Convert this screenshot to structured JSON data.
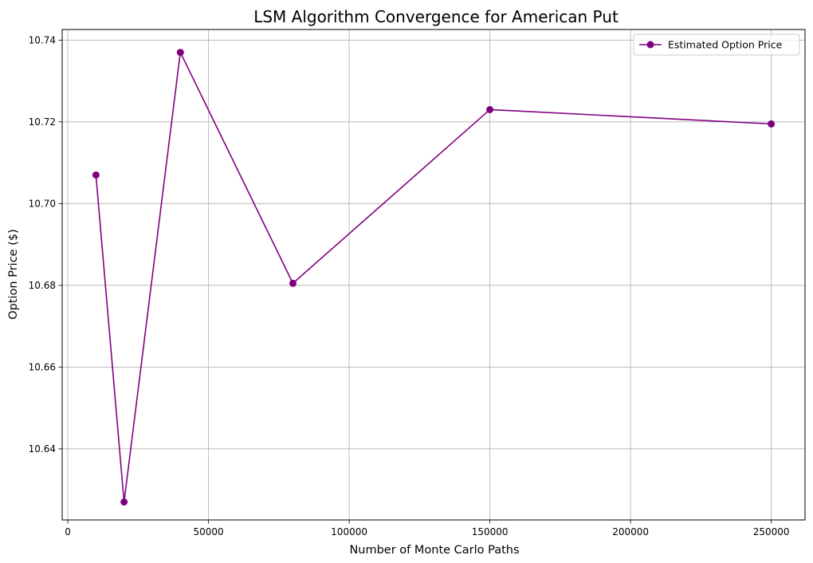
{
  "chart_data": {
    "type": "line",
    "title": "LSM Algorithm Convergence for American Put",
    "xlabel": "Number of Monte Carlo Paths",
    "ylabel": "Option Price ($)",
    "xlim": [
      -2000,
      262000
    ],
    "ylim": [
      10.6226,
      10.7426
    ],
    "xticks": [
      0,
      50000,
      100000,
      150000,
      200000,
      250000
    ],
    "yticks": [
      10.64,
      10.66,
      10.68,
      10.7,
      10.72,
      10.74
    ],
    "ytick_labels": [
      "10.64",
      "10.66",
      "10.68",
      "10.70",
      "10.72",
      "10.74"
    ],
    "grid": true,
    "legend_position": "top-right",
    "series": [
      {
        "name": "Estimated Option Price",
        "color": "#800080",
        "marker": "circle",
        "x": [
          10000,
          20000,
          40000,
          80000,
          150000,
          250000
        ],
        "y": [
          10.707,
          10.627,
          10.737,
          10.6805,
          10.723,
          10.7195
        ]
      }
    ]
  }
}
